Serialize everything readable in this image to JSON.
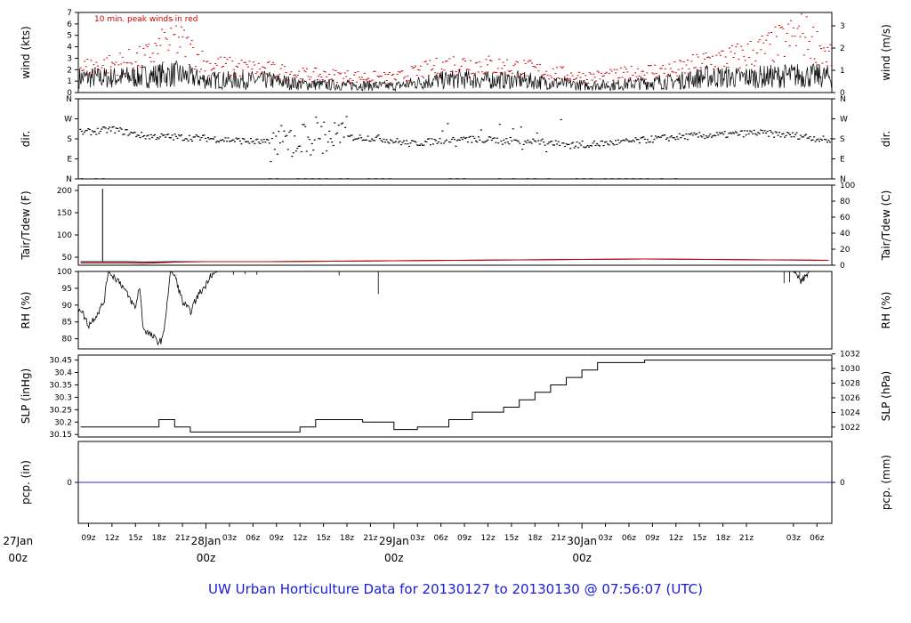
{
  "title": "UW Urban Horticulture Data for 20130127  to  20130130 @ 07:56:07  (UTC)",
  "time_axis": {
    "range_hours": [
      -16.3,
      79.9
    ],
    "hour_ticks": [
      {
        "t": -15,
        "label": "09z"
      },
      {
        "t": -12,
        "label": "12z"
      },
      {
        "t": -9,
        "label": "15z"
      },
      {
        "t": -6,
        "label": "18z"
      },
      {
        "t": -3,
        "label": "21z"
      },
      {
        "t": 3,
        "label": "03z"
      },
      {
        "t": 6,
        "label": "06z"
      },
      {
        "t": 9,
        "label": "09z"
      },
      {
        "t": 12,
        "label": "12z"
      },
      {
        "t": 15,
        "label": "15z"
      },
      {
        "t": 18,
        "label": "18z"
      },
      {
        "t": 21,
        "label": "21z"
      },
      {
        "t": 27,
        "label": "03z"
      },
      {
        "t": 30,
        "label": "06z"
      },
      {
        "t": 33,
        "label": "09z"
      },
      {
        "t": 36,
        "label": "12z"
      },
      {
        "t": 39,
        "label": "15z"
      },
      {
        "t": 42,
        "label": "18z"
      },
      {
        "t": 45,
        "label": "21z"
      },
      {
        "t": 51,
        "label": "03z"
      },
      {
        "t": 54,
        "label": "06z"
      },
      {
        "t": 57,
        "label": "09z"
      },
      {
        "t": 60,
        "label": "12z"
      },
      {
        "t": 63,
        "label": "15z"
      },
      {
        "t": 66,
        "label": "18z"
      },
      {
        "t": 69,
        "label": "21z"
      },
      {
        "t": 75,
        "label": "03z"
      },
      {
        "t": 78,
        "label": "06z"
      }
    ],
    "day_ticks": [
      {
        "t": -24,
        "label": "27Jan",
        "sub": "00z"
      },
      {
        "t": 0,
        "label": "28Jan",
        "sub": "00z"
      },
      {
        "t": 24,
        "label": "29Jan",
        "sub": "00z"
      },
      {
        "t": 48,
        "label": "30Jan",
        "sub": "00z"
      }
    ],
    "day_label_color": "#cc0000"
  },
  "colors": {
    "peak": "#cc0000",
    "tdew": "#cc0000",
    "pcp": "#2a2ad9",
    "line": "#000000"
  },
  "chart_data": [
    {
      "name": "wind",
      "type": "line",
      "ylabel": "wind (kts)",
      "ylabel_right": "wind (m/s)",
      "ylim": [
        0,
        7
      ],
      "yticks": [
        0,
        1,
        2,
        3,
        4,
        5,
        6,
        7
      ],
      "right_ticks": [
        {
          "v": 0,
          "label": "0"
        },
        {
          "v": 1.944,
          "label": "1"
        },
        {
          "v": 3.888,
          "label": "2"
        },
        {
          "v": 5.832,
          "label": "3"
        }
      ],
      "annotation": "10 min. peak winds in red",
      "series": [
        {
          "role": "mean",
          "x": [
            -16,
            -12,
            -8,
            -4,
            0,
            4,
            8,
            12,
            16,
            20,
            24,
            28,
            32,
            36,
            40,
            44,
            48,
            52,
            56,
            60,
            64,
            68,
            72,
            76,
            79.5
          ],
          "y": [
            1.2,
            1.2,
            1.3,
            1.5,
            1.0,
            1.0,
            1.0,
            0.7,
            0.6,
            0.6,
            0.5,
            0.9,
            1.1,
            1.0,
            1.0,
            0.8,
            0.6,
            0.6,
            0.8,
            0.9,
            1.3,
            1.2,
            1.3,
            1.4,
            1.3
          ]
        },
        {
          "role": "peak",
          "x": [
            -16,
            -12,
            -8,
            -4,
            0,
            4,
            8,
            12,
            16,
            20,
            24,
            28,
            32,
            36,
            40,
            44,
            48,
            52,
            56,
            60,
            64,
            68,
            72,
            76,
            79.5
          ],
          "y": [
            2.2,
            2.5,
            3.0,
            4.8,
            2.5,
            2.2,
            2.0,
            1.6,
            1.5,
            1.4,
            1.3,
            2.0,
            2.6,
            2.4,
            2.2,
            1.8,
            1.4,
            1.5,
            1.9,
            2.0,
            2.8,
            3.2,
            4.0,
            5.2,
            3.3
          ]
        }
      ]
    },
    {
      "name": "dir",
      "type": "scatter",
      "ylabel": "dir.",
      "ylabel_right": "dir.",
      "ylim": [
        0,
        360
      ],
      "yticks_labeled": [
        {
          "v": 0,
          "label": "N"
        },
        {
          "v": 90,
          "label": "E"
        },
        {
          "v": 180,
          "label": "S"
        },
        {
          "v": 270,
          "label": "W"
        },
        {
          "v": 360,
          "label": "N"
        }
      ],
      "series": [
        {
          "x": [
            -16,
            -12,
            -8,
            -4,
            0,
            4,
            8,
            10,
            14,
            18,
            22,
            26,
            30,
            34,
            38,
            42,
            46,
            50,
            54,
            58,
            62,
            66,
            70,
            74,
            76,
            79.5
          ],
          "y": [
            210,
            225,
            195,
            190,
            185,
            175,
            165,
            160,
            200,
            190,
            185,
            160,
            175,
            180,
            175,
            170,
            155,
            160,
            170,
            185,
            195,
            200,
            210,
            200,
            195,
            175
          ]
        }
      ]
    },
    {
      "name": "temp",
      "type": "line",
      "ylabel": "Tair/Tdew (F)",
      "ylabel_right": "Tair/Tdew (C)",
      "ylim": [
        32,
        212
      ],
      "yticks": [
        50,
        100,
        150,
        200
      ],
      "right_ticks": [
        {
          "v": 32,
          "label": "0"
        },
        {
          "v": 68,
          "label": "20"
        },
        {
          "v": 104,
          "label": "40"
        },
        {
          "v": 140,
          "label": "60"
        },
        {
          "v": 176,
          "label": "80"
        },
        {
          "v": 212,
          "label": "100"
        }
      ],
      "series": [
        {
          "role": "Tair",
          "x": [
            -16,
            -10,
            -8,
            -4,
            0,
            8,
            16,
            24,
            32,
            40,
            48,
            56,
            64,
            72,
            79.5
          ],
          "y": [
            40,
            40,
            39,
            40,
            40,
            40,
            41,
            42,
            43,
            44,
            45,
            46,
            45,
            44,
            43
          ]
        },
        {
          "role": "Tdew",
          "x": [
            -16,
            -10,
            -8,
            -4,
            0,
            8,
            16,
            24,
            32,
            40,
            48,
            56,
            64,
            72,
            79.5
          ],
          "y": [
            37,
            37,
            36,
            39,
            40,
            40,
            41,
            42,
            43,
            44,
            45,
            46,
            45,
            44,
            43
          ]
        },
        {
          "role": "spike",
          "x": [
            -13.2,
            -13.2
          ],
          "y": [
            40,
            204
          ]
        }
      ]
    },
    {
      "name": "rh",
      "type": "line",
      "ylabel": "RH (%)",
      "ylabel_right": "RH (%)",
      "ylim": [
        77,
        100
      ],
      "yticks": [
        80,
        85,
        90,
        95,
        100
      ],
      "series": [
        {
          "x": [
            -16,
            -15,
            -14,
            -13,
            -12.5,
            -11,
            -10,
            -9,
            -8.5,
            -8,
            -7,
            -6,
            -5.5,
            -4.5,
            -4,
            -3,
            -2,
            -1,
            0,
            0.5,
            1.5,
            24,
            26,
            27,
            70,
            75,
            76,
            77,
            79.9
          ],
          "y": [
            89,
            84,
            87,
            91,
            100,
            97,
            93,
            89,
            96,
            83,
            81,
            79,
            80,
            100,
            99,
            91,
            88,
            93,
            96,
            99,
            100,
            100,
            100,
            100,
            100,
            100,
            97,
            100,
            100
          ]
        }
      ]
    },
    {
      "name": "slp",
      "type": "step",
      "ylabel": "SLP (inHg)",
      "ylabel_right": "SLP (hPa)",
      "ylim": [
        30.14,
        30.47
      ],
      "yticks": [
        30.15,
        30.2,
        30.25,
        30.3,
        30.35,
        30.4,
        30.45
      ],
      "right_ticks": [
        {
          "v": 30.18,
          "label": "1022"
        },
        {
          "v": 30.239,
          "label": "1024"
        },
        {
          "v": 30.298,
          "label": "1026"
        },
        {
          "v": 30.357,
          "label": "1028"
        },
        {
          "v": 30.416,
          "label": "1030"
        },
        {
          "v": 30.475,
          "label": "1032"
        }
      ],
      "series": [
        {
          "x": [
            -16,
            -6,
            -4,
            -2,
            8,
            12,
            14,
            20,
            24,
            27,
            31,
            34,
            38,
            40,
            42,
            44,
            46,
            48,
            50,
            52,
            54,
            56,
            60,
            70,
            79.9
          ],
          "y": [
            30.18,
            30.21,
            30.18,
            30.16,
            30.16,
            30.18,
            30.21,
            30.2,
            30.17,
            30.18,
            30.21,
            30.24,
            30.26,
            30.29,
            30.32,
            30.35,
            30.38,
            30.41,
            30.44,
            30.44,
            30.44,
            30.45,
            30.45,
            30.45,
            30.46
          ]
        }
      ]
    },
    {
      "name": "pcp",
      "type": "line",
      "ylabel": "pcp. (in)",
      "ylabel_right": "pcp. (mm)",
      "ylim": [
        -1,
        1
      ],
      "yticks": [
        0
      ],
      "right_ticks": [
        {
          "v": 0,
          "label": "0"
        }
      ],
      "series": [
        {
          "x": [
            -16.3,
            79.9
          ],
          "y": [
            0,
            0
          ]
        }
      ]
    }
  ]
}
